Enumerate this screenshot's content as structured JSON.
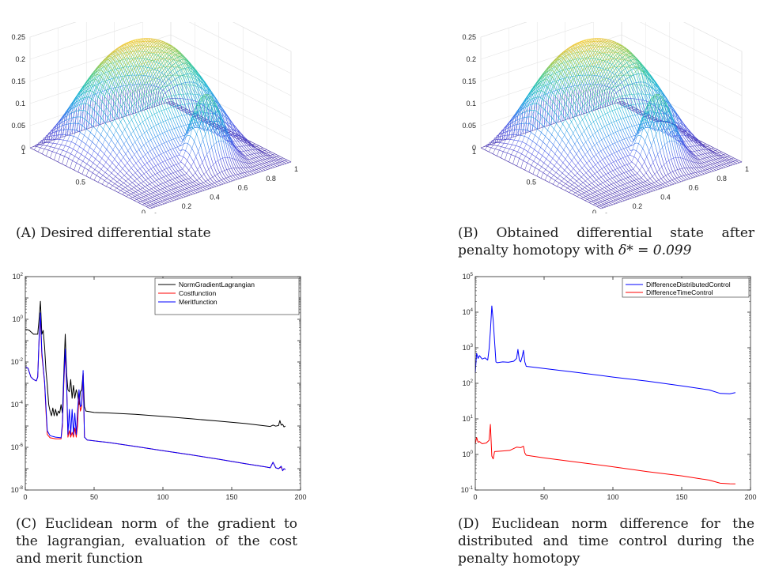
{
  "figures": [
    {
      "label": "(A)",
      "caption": "Desired differential state",
      "chart_data": {
        "type": "surface",
        "title": "",
        "z_ticks": [
          "0",
          "0.05",
          "0.1",
          "0.15",
          "0.2",
          "0.25"
        ],
        "left_axis_ticks": [
          "0",
          "0.5",
          "1"
        ],
        "right_axis_ticks": [
          "0",
          "0.2",
          "0.4",
          "0.6",
          "0.8",
          "1"
        ],
        "zlim": [
          0,
          0.25
        ],
        "colormap": "parula",
        "plateau_height": 0.25,
        "bump_height": 0.18,
        "second_ridge_height": 0
      }
    },
    {
      "label": "(B)",
      "caption": "Obtained differential state after penalty homotopy with",
      "caption_math": "δ* = 0.099",
      "chart_data": {
        "type": "surface",
        "title": "",
        "z_ticks": [
          "0",
          "0.05",
          "0.1",
          "0.15",
          "0.2",
          "0.25"
        ],
        "left_axis_ticks": [
          "0",
          "0.5",
          "1"
        ],
        "right_axis_ticks": [
          "0",
          "0.2",
          "0.4",
          "0.6",
          "0.8",
          "1"
        ],
        "zlim": [
          0,
          0.25
        ],
        "colormap": "parula",
        "plateau_height": 0.25,
        "bump_height": 0.18,
        "second_ridge_height": 0.17
      }
    },
    {
      "label": "(C)",
      "caption": "Euclidean norm of the gradient to the lagrangian, evaluation of the cost and merit function",
      "chart_data": {
        "type": "line",
        "yscale": "log",
        "xlim": [
          0,
          200
        ],
        "ylim": [
          1e-08,
          100
        ],
        "x_ticks": [
          "0",
          "50",
          "100",
          "150",
          "200"
        ],
        "y_ticks": [
          "10^2",
          "10^0",
          "10^-2",
          "10^-4",
          "10^-6",
          "10^-8"
        ],
        "legend_position": "top-right",
        "series": [
          {
            "name": "NormGradientLagrangian",
            "color": "#000000",
            "points": [
              [
                0,
                0.35
              ],
              [
                3,
                0.3
              ],
              [
                6,
                0.2
              ],
              [
                9,
                0.2
              ],
              [
                10,
                1.0
              ],
              [
                11,
                7
              ],
              [
                12,
                0.2
              ],
              [
                13,
                0.3
              ],
              [
                14,
                0.05
              ],
              [
                15,
                0.004
              ],
              [
                16,
                0.0008
              ],
              [
                17,
                0.0001
              ],
              [
                18,
                5e-05
              ],
              [
                19,
                3e-05
              ],
              [
                20,
                7e-05
              ],
              [
                21,
                3e-05
              ],
              [
                22,
                6e-05
              ],
              [
                23,
                3e-05
              ],
              [
                24,
                5e-05
              ],
              [
                25,
                4e-05
              ],
              [
                26,
                0.0001
              ],
              [
                27,
                4e-05
              ],
              [
                28,
                0.003
              ],
              [
                29,
                0.2
              ],
              [
                30,
                0.003
              ],
              [
                31,
                0.0005
              ],
              [
                32,
                0.0004
              ],
              [
                33,
                0.0015
              ],
              [
                34,
                0.0002
              ],
              [
                35,
                0.0008
              ],
              [
                36,
                0.0002
              ],
              [
                37,
                0.0005
              ],
              [
                38,
                0.0003
              ],
              [
                39,
                0.0001
              ],
              [
                40,
                0.0004
              ],
              [
                41,
                0.0005
              ],
              [
                42,
                0.003
              ],
              [
                43,
                8e-05
              ],
              [
                44,
                5e-05
              ],
              [
                50,
                4.3e-05
              ],
              [
                60,
                4.1e-05
              ],
              [
                80,
                3.5e-05
              ],
              [
                100,
                2.8e-05
              ],
              [
                120,
                2.2e-05
              ],
              [
                140,
                1.7e-05
              ],
              [
                160,
                1.3e-05
              ],
              [
                175,
                1e-05
              ],
              [
                178,
                9.5e-06
              ],
              [
                180,
                1.1e-05
              ],
              [
                182,
                9.8e-06
              ],
              [
                184,
                1.05e-05
              ],
              [
                185,
                1.8e-05
              ],
              [
                186,
                1.1e-05
              ],
              [
                187,
                1.2e-05
              ],
              [
                188,
                9e-06
              ],
              [
                189,
                1e-05
              ]
            ]
          },
          {
            "name": "Costfunction",
            "color": "#ff0000",
            "points": [
              [
                0,
                0.006
              ],
              [
                2,
                0.005
              ],
              [
                4,
                0.002
              ],
              [
                6,
                0.0015
              ],
              [
                8,
                0.0013
              ],
              [
                9,
                0.002
              ],
              [
                10,
                0.1
              ],
              [
                11,
                1.5
              ],
              [
                12,
                0.02
              ],
              [
                13,
                0.005
              ],
              [
                14,
                0.001
              ],
              [
                15,
                5e-05
              ],
              [
                16,
                4e-06
              ],
              [
                18,
                2.8e-06
              ],
              [
                22,
                2.5e-06
              ],
              [
                26,
                2.5e-06
              ],
              [
                27,
                1e-05
              ],
              [
                28,
                0.001
              ],
              [
                29,
                0.03
              ],
              [
                30,
                0.001
              ],
              [
                31,
                3e-06
              ],
              [
                32,
                6e-06
              ],
              [
                33,
                3e-06
              ],
              [
                34,
                5e-06
              ],
              [
                35,
                3e-06
              ],
              [
                36,
                8e-06
              ],
              [
                37,
                3e-06
              ],
              [
                38,
                1e-05
              ],
              [
                39,
                0.0004
              ],
              [
                40,
                5e-05
              ],
              [
                41,
                8e-05
              ],
              [
                42,
                0.003
              ],
              [
                43,
                3e-06
              ],
              [
                45,
                2.2e-06
              ],
              [
                60,
                1.7e-06
              ],
              [
                80,
                1.1e-06
              ],
              [
                100,
                7e-07
              ],
              [
                120,
                4.5e-07
              ],
              [
                140,
                2.8e-07
              ],
              [
                160,
                1.7e-07
              ],
              [
                175,
                1.2e-07
              ],
              [
                178,
                1.1e-07
              ],
              [
                180,
                2e-07
              ],
              [
                182,
                1.1e-07
              ],
              [
                184,
                1e-07
              ],
              [
                186,
                1.2e-07
              ],
              [
                187,
                8e-08
              ],
              [
                188,
                1e-07
              ],
              [
                189,
                9e-08
              ]
            ]
          },
          {
            "name": "Meritfunction",
            "color": "#0000ff",
            "points": [
              [
                0,
                0.006
              ],
              [
                2,
                0.005
              ],
              [
                4,
                0.002
              ],
              [
                6,
                0.0015
              ],
              [
                8,
                0.0013
              ],
              [
                9,
                0.002
              ],
              [
                10,
                0.12
              ],
              [
                11,
                2
              ],
              [
                12,
                0.03
              ],
              [
                13,
                0.006
              ],
              [
                14,
                0.0012
              ],
              [
                15,
                8e-05
              ],
              [
                16,
                6e-06
              ],
              [
                18,
                3.5e-06
              ],
              [
                22,
                3e-06
              ],
              [
                26,
                2.8e-06
              ],
              [
                27,
                1.5e-05
              ],
              [
                28,
                0.0015
              ],
              [
                29,
                0.04
              ],
              [
                30,
                0.0012
              ],
              [
                31,
                4e-06
              ],
              [
                32,
                6e-05
              ],
              [
                33,
                4e-06
              ],
              [
                34,
                6e-05
              ],
              [
                35,
                4e-06
              ],
              [
                36,
                4e-05
              ],
              [
                37,
                4e-06
              ],
              [
                38,
                5e-05
              ],
              [
                39,
                0.0005
              ],
              [
                40,
                8e-05
              ],
              [
                41,
                0.0001
              ],
              [
                42,
                0.004
              ],
              [
                43,
                3e-06
              ],
              [
                45,
                2.2e-06
              ],
              [
                60,
                1.7e-06
              ],
              [
                80,
                1.1e-06
              ],
              [
                100,
                7e-07
              ],
              [
                120,
                4.5e-07
              ],
              [
                140,
                2.8e-07
              ],
              [
                160,
                1.7e-07
              ],
              [
                175,
                1.2e-07
              ],
              [
                178,
                1.1e-07
              ],
              [
                180,
                2e-07
              ],
              [
                182,
                1.1e-07
              ],
              [
                184,
                1e-07
              ],
              [
                186,
                1.3e-07
              ],
              [
                187,
                8e-08
              ],
              [
                188,
                1e-07
              ],
              [
                189,
                9e-08
              ]
            ]
          }
        ]
      }
    },
    {
      "label": "(D)",
      "caption": "Euclidean norm difference for the distributed and time control during the penalty homotopy",
      "chart_data": {
        "type": "line",
        "yscale": "log",
        "xlim": [
          0,
          200
        ],
        "ylim": [
          0.1,
          100000
        ],
        "x_ticks": [
          "0",
          "50",
          "100",
          "150",
          "200"
        ],
        "y_ticks": [
          "10^5",
          "10^4",
          "10^3",
          "10^2",
          "10^1",
          "10^0",
          "10^-1"
        ],
        "legend_position": "top-right",
        "series": [
          {
            "name": "DifferenceDistributedControl",
            "color": "#0000ff",
            "points": [
              [
                0,
                200
              ],
              [
                1,
                700
              ],
              [
                2,
                500
              ],
              [
                3,
                600
              ],
              [
                5,
                480
              ],
              [
                7,
                520
              ],
              [
                9,
                450
              ],
              [
                10,
                900
              ],
              [
                11,
                3000
              ],
              [
                12,
                15000
              ],
              [
                13,
                6000
              ],
              [
                14,
                1500
              ],
              [
                15,
                400
              ],
              [
                16,
                380
              ],
              [
                20,
                400
              ],
              [
                24,
                390
              ],
              [
                28,
                420
              ],
              [
                30,
                500
              ],
              [
                31,
                900
              ],
              [
                32,
                450
              ],
              [
                33,
                400
              ],
              [
                34,
                550
              ],
              [
                35,
                850
              ],
              [
                36,
                400
              ],
              [
                37,
                300
              ],
              [
                50,
                260
              ],
              [
                75,
                200
              ],
              [
                100,
                150
              ],
              [
                125,
                115
              ],
              [
                150,
                85
              ],
              [
                170,
                65
              ],
              [
                178,
                52
              ],
              [
                185,
                51
              ],
              [
                189,
                55
              ]
            ]
          },
          {
            "name": "DifferenceTimeControl",
            "color": "#ff0000",
            "points": [
              [
                0,
                2.0
              ],
              [
                1,
                3.0
              ],
              [
                2,
                2.2
              ],
              [
                3,
                2.3
              ],
              [
                5,
                2.0
              ],
              [
                8,
                2.1
              ],
              [
                10,
                2.5
              ],
              [
                11,
                7
              ],
              [
                12,
                0.9
              ],
              [
                13,
                0.75
              ],
              [
                14,
                1.2
              ],
              [
                20,
                1.25
              ],
              [
                25,
                1.3
              ],
              [
                30,
                1.6
              ],
              [
                33,
                1.55
              ],
              [
                35,
                1.7
              ],
              [
                36,
                1.1
              ],
              [
                37,
                0.95
              ],
              [
                50,
                0.8
              ],
              [
                75,
                0.6
              ],
              [
                100,
                0.45
              ],
              [
                125,
                0.33
              ],
              [
                150,
                0.25
              ],
              [
                170,
                0.19
              ],
              [
                178,
                0.155
              ],
              [
                185,
                0.15
              ],
              [
                189,
                0.148
              ]
            ]
          }
        ]
      }
    }
  ]
}
